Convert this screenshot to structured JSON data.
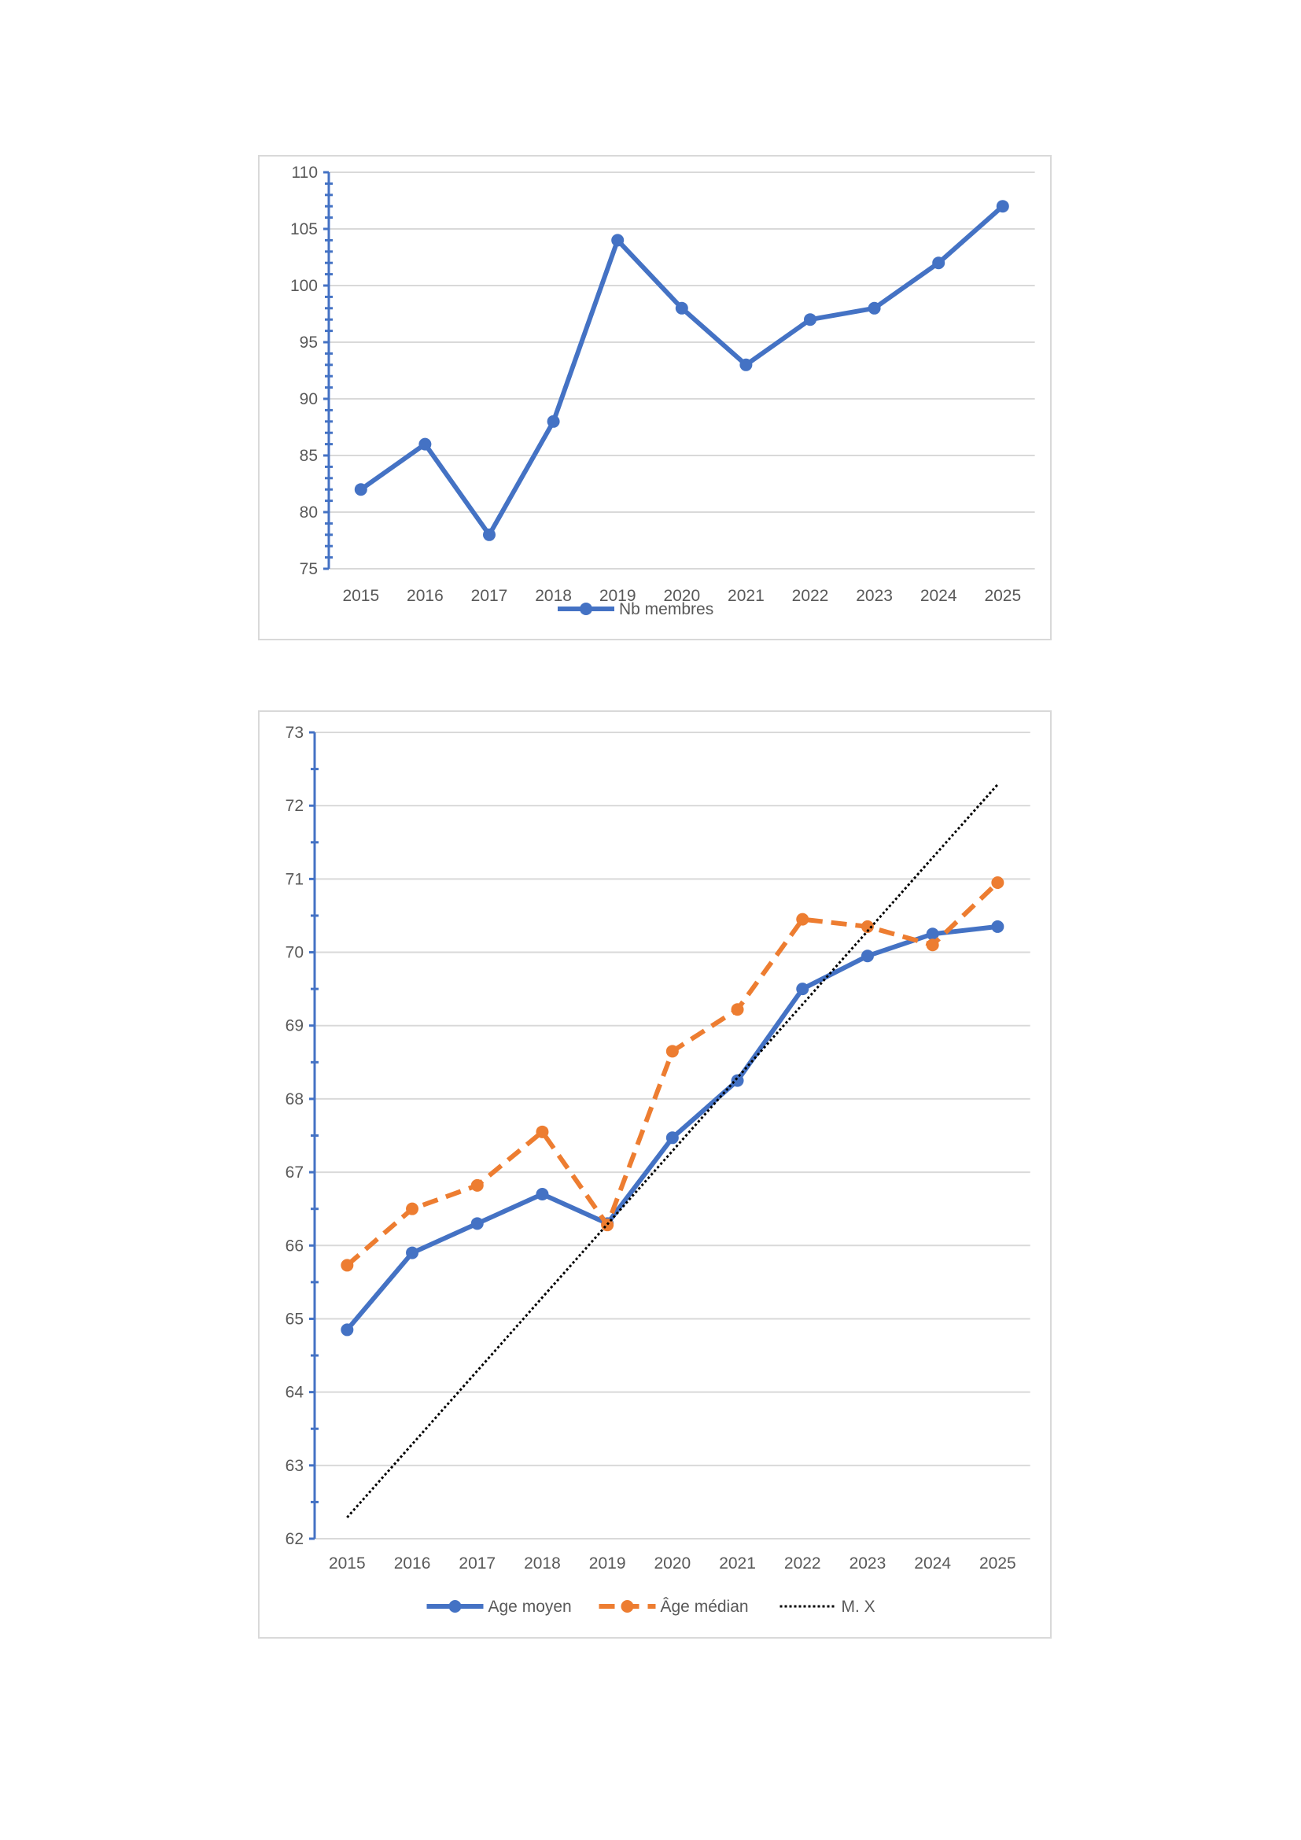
{
  "chart_data": [
    {
      "type": "line",
      "categories": [
        "2015",
        "2016",
        "2017",
        "2018",
        "2019",
        "2020",
        "2021",
        "2022",
        "2023",
        "2024",
        "2025"
      ],
      "series": [
        {
          "name": "Nb membres",
          "values": [
            82,
            86,
            78,
            88,
            104,
            98,
            93,
            97,
            98,
            102,
            107
          ],
          "color": "#4472c4",
          "style": "solid",
          "markers": true
        }
      ],
      "ylim": [
        75,
        110
      ],
      "yticks": [
        75,
        80,
        85,
        90,
        95,
        100,
        105,
        110
      ],
      "grid": true,
      "legend": "bottom"
    },
    {
      "type": "line",
      "categories": [
        "2015",
        "2016",
        "2017",
        "2018",
        "2019",
        "2020",
        "2021",
        "2022",
        "2023",
        "2024",
        "2025"
      ],
      "series": [
        {
          "name": "Age moyen",
          "values": [
            64.85,
            65.9,
            66.3,
            66.7,
            66.3,
            67.47,
            68.25,
            69.5,
            69.95,
            70.25,
            70.35
          ],
          "color": "#4472c4",
          "style": "solid",
          "markers": true
        },
        {
          "name": "Âge médian",
          "values": [
            65.73,
            66.5,
            66.82,
            67.55,
            66.28,
            68.65,
            69.22,
            70.45,
            70.35,
            70.1,
            70.95
          ],
          "color": "#ed7d31",
          "style": "dashed",
          "markers": true
        },
        {
          "name": "M. X",
          "values": [
            62.29,
            63.29,
            64.29,
            65.29,
            66.29,
            67.29,
            68.29,
            69.29,
            70.29,
            71.29,
            72.29
          ],
          "color": "#000000",
          "style": "dotted",
          "markers": false
        }
      ],
      "ylim": [
        62,
        73
      ],
      "yticks": [
        62,
        63,
        64,
        65,
        66,
        67,
        68,
        69,
        70,
        71,
        72,
        73
      ],
      "grid": true,
      "legend": "bottom"
    }
  ]
}
